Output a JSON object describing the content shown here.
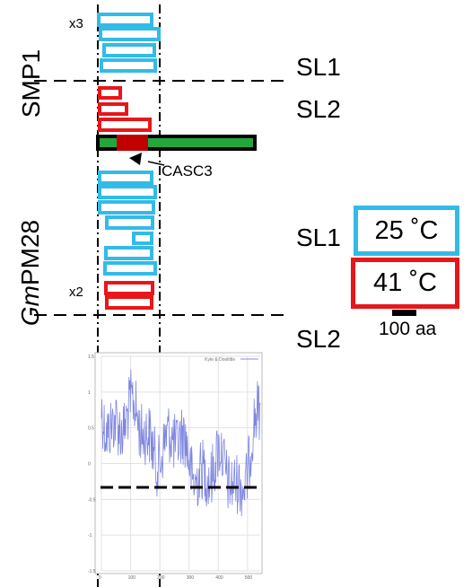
{
  "labels": {
    "smp1": "SMP1",
    "gmpm28_italic": "Gm",
    "gmpm28_rest": "PM28",
    "sl1_top": "SL1",
    "sl2_top": "SL2",
    "sl1_bottom": "SL1",
    "sl2_bottom": "SL2",
    "x3": "x3",
    "x2": "x2",
    "casc3": "CASC3",
    "scale": "100 aa"
  },
  "legend": {
    "cold": {
      "text": "25 ˚C",
      "color": "#33bbe8"
    },
    "hot": {
      "text": "41 ˚C",
      "color": "#e8161a"
    }
  },
  "colors": {
    "blue": "#33bbe8",
    "red": "#e8161a",
    "green": "#22a83a",
    "casc3": "#c00000"
  },
  "plot": {
    "legend_text": "Kyte & Doolittle",
    "y_ticks": [
      "1.5",
      "1",
      "0.5",
      "0",
      "-0.5",
      "-1",
      "-1.5"
    ],
    "x_ticks": [
      "0",
      "100",
      "200",
      "300",
      "400",
      "500"
    ]
  }
}
